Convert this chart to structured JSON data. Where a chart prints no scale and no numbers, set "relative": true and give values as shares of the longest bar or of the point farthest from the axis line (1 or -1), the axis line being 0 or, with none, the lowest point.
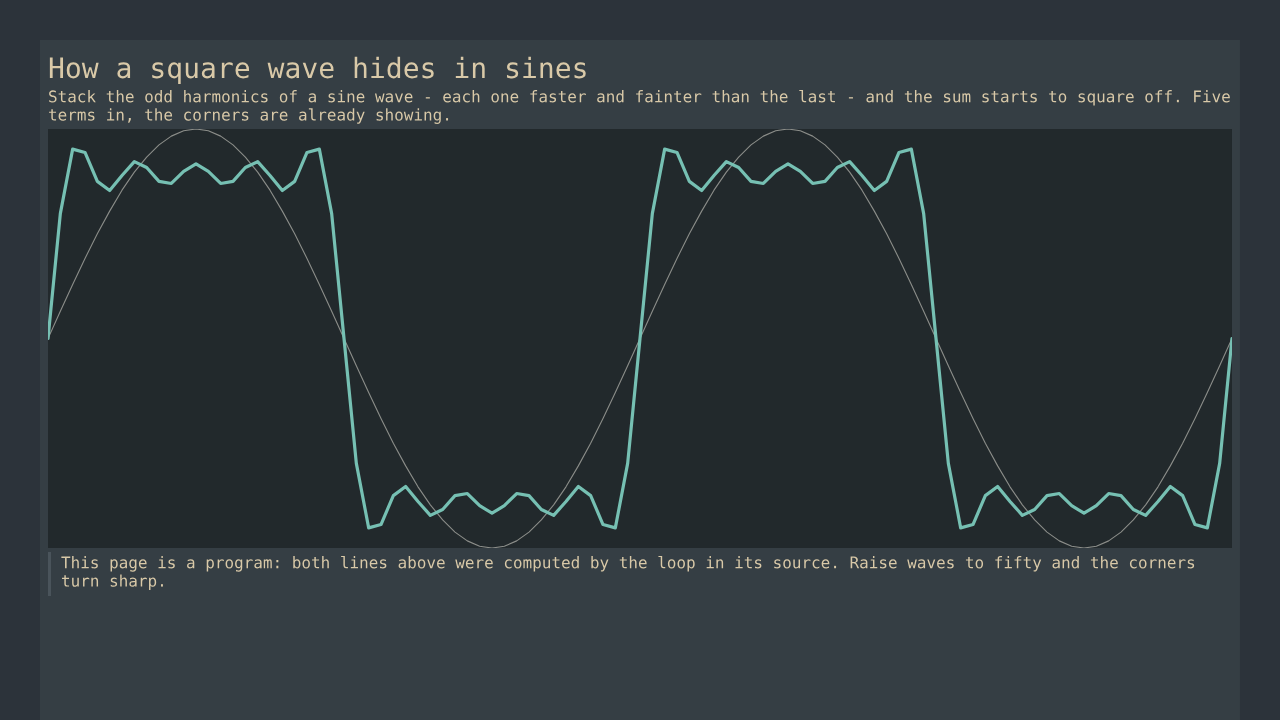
{
  "chart_data": {
    "type": "line",
    "title": "How a square wave hides in sines",
    "subtitle": "Stack the odd harmonics of a sine wave - each one faster and fainter than the last - and the sum starts to square off. Five terms in, the corners are already showing.",
    "annotations": [
      "This page is a program: both lines above were computed by the loop in its source. Raise waves to fifty and the corners turn sharp."
    ],
    "relative": true,
    "categories": [
      null,
      null,
      null,
      null,
      null,
      null,
      null,
      null,
      null,
      null,
      null,
      null,
      null,
      null,
      null,
      null,
      null,
      null,
      null,
      null,
      null,
      null,
      null,
      null,
      null,
      null,
      null,
      null,
      null,
      null,
      null,
      null,
      null,
      null,
      null,
      null,
      null,
      null,
      null,
      null,
      null,
      null,
      null,
      null,
      null,
      null,
      null,
      null,
      null,
      null,
      null,
      null,
      null,
      null,
      null,
      null,
      null,
      null,
      null,
      null,
      null,
      null,
      null,
      null,
      null,
      null,
      null,
      null,
      null,
      null,
      null,
      null,
      null,
      null,
      null,
      null,
      null,
      null,
      null,
      null,
      null,
      null,
      null,
      null,
      null,
      null,
      null,
      null,
      null,
      null,
      null,
      null,
      null,
      null,
      null,
      null,
      null
    ],
    "series": [
      {
        "color": "#8b8d89",
        "values": [
          0.5,
          0.565,
          0.629,
          0.691,
          0.75,
          0.804,
          0.854,
          0.897,
          0.933,
          0.962,
          0.983,
          0.996,
          1,
          0.996,
          0.983,
          0.962,
          0.933,
          0.897,
          0.854,
          0.804,
          0.75,
          0.691,
          0.629,
          0.565,
          0.5,
          0.435,
          0.371,
          0.309,
          0.25,
          0.196,
          0.146,
          0.103,
          0.067,
          0.038,
          0.017,
          0.004,
          0,
          0.004,
          0.017,
          0.038,
          0.067,
          0.103,
          0.146,
          0.196,
          0.25,
          0.309,
          0.371,
          0.435,
          0.5,
          0.565,
          0.629,
          0.691,
          0.75,
          0.804,
          0.854,
          0.897,
          0.933,
          0.962,
          0.983,
          0.996,
          1,
          0.996,
          0.983,
          0.962,
          0.933,
          0.897,
          0.854,
          0.804,
          0.75,
          0.691,
          0.629,
          0.565,
          0.5,
          0.435,
          0.371,
          0.309,
          0.25,
          0.196,
          0.146,
          0.103,
          0.067,
          0.038,
          0.017,
          0.004,
          0,
          0.004,
          0.017,
          0.038,
          0.067,
          0.103,
          0.146,
          0.196,
          0.25,
          0.309,
          0.371,
          0.435,
          0.5
        ]
      },
      {
        "color": "#76c0b3",
        "values": [
          0.5,
          0.798,
          0.952,
          0.944,
          0.875,
          0.853,
          0.889,
          0.922,
          0.908,
          0.875,
          0.87,
          0.899,
          0.917,
          0.899,
          0.87,
          0.875,
          0.908,
          0.922,
          0.889,
          0.853,
          0.875,
          0.944,
          0.952,
          0.798,
          0.5,
          0.202,
          0.048,
          0.056,
          0.125,
          0.147,
          0.111,
          0.078,
          0.092,
          0.125,
          0.13,
          0.101,
          0.083,
          0.101,
          0.13,
          0.125,
          0.092,
          0.078,
          0.111,
          0.147,
          0.125,
          0.056,
          0.048,
          0.202,
          0.5,
          0.798,
          0.952,
          0.944,
          0.875,
          0.853,
          0.889,
          0.922,
          0.908,
          0.875,
          0.87,
          0.899,
          0.917,
          0.899,
          0.87,
          0.875,
          0.908,
          0.922,
          0.889,
          0.853,
          0.875,
          0.944,
          0.952,
          0.798,
          0.5,
          0.202,
          0.048,
          0.056,
          0.125,
          0.147,
          0.111,
          0.078,
          0.092,
          0.125,
          0.13,
          0.101,
          0.083,
          0.101,
          0.13,
          0.125,
          0.092,
          0.078,
          0.111,
          0.147,
          0.125,
          0.056,
          0.048,
          0.202,
          0.5
        ]
      }
    ]
  }
}
